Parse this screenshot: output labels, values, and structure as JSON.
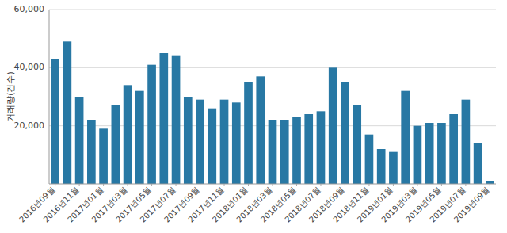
{
  "chart_data": {
    "type": "bar",
    "ylabel": "거래량(건수)",
    "categories": [
      "2016년09월",
      null,
      "2016년11월",
      null,
      "2017년01월",
      null,
      "2017년03월",
      null,
      "2017년05월",
      null,
      "2017년07월",
      null,
      "2017년09월",
      null,
      "2017년11월",
      null,
      "2018년01월",
      null,
      "2018년03월",
      null,
      "2018년05월",
      null,
      "2018년07월",
      null,
      "2018년09월",
      null,
      "2018년11월",
      null,
      "2019년01월",
      null,
      "2019년03월",
      null,
      "2019년05월",
      null,
      "2019년07월",
      null,
      "2019년09월"
    ],
    "values": [
      43000,
      49000,
      30000,
      22000,
      19000,
      27000,
      34000,
      32000,
      41000,
      45000,
      44000,
      30000,
      29000,
      26000,
      29000,
      28000,
      35000,
      37000,
      22000,
      22000,
      23000,
      24000,
      25000,
      40000,
      35000,
      27000,
      17000,
      12000,
      11000,
      32000,
      20000,
      21000,
      21000,
      24000,
      29000,
      14000,
      1000
    ],
    "color": "#2878a4",
    "ylim": [
      0,
      60000
    ],
    "yticks": [
      {
        "value": 20000,
        "label": "20,000"
      },
      {
        "value": 40000,
        "label": "40,000"
      },
      {
        "value": 60000,
        "label": "60,000"
      }
    ],
    "grid": true
  }
}
